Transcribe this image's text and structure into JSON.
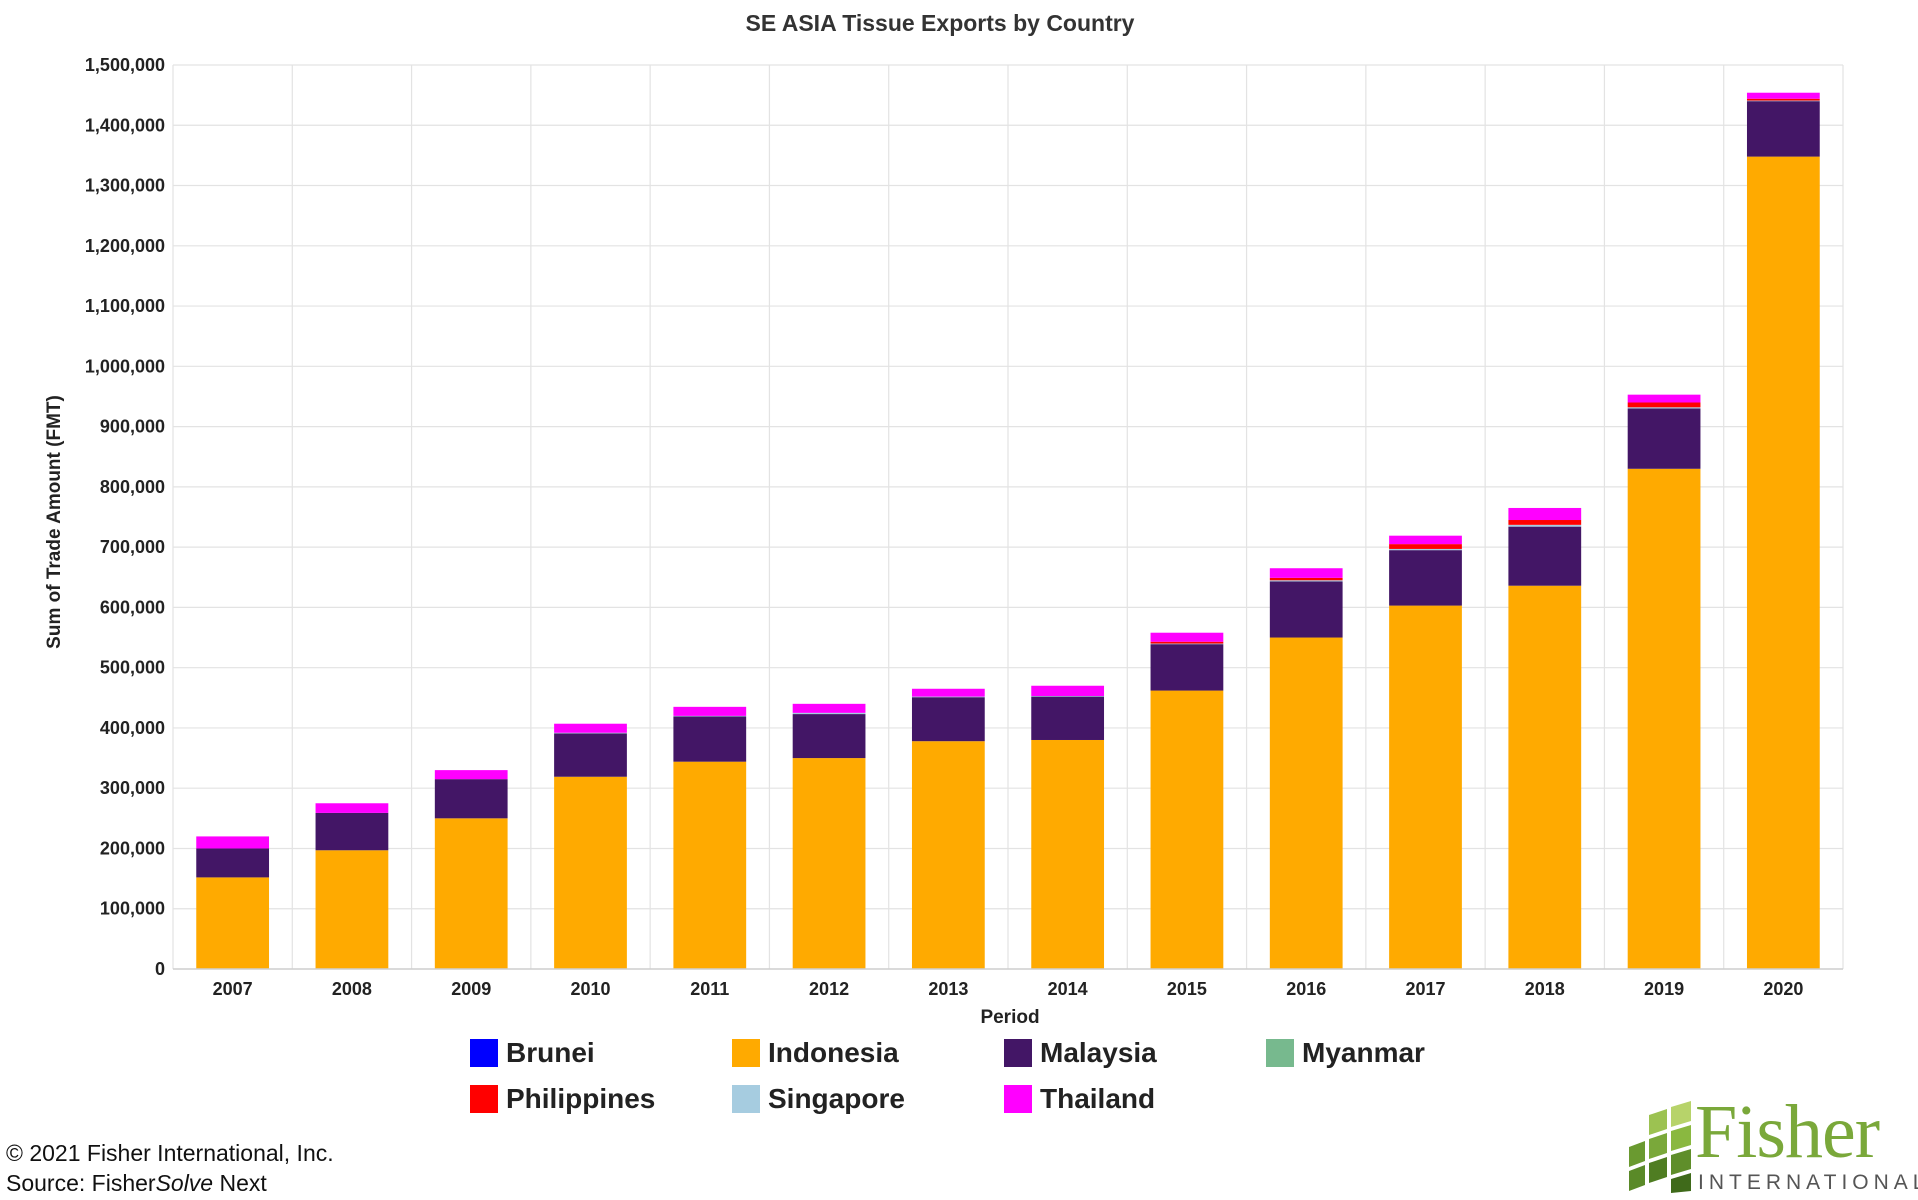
{
  "chart_data": {
    "type": "bar",
    "stacked": true,
    "title": "SE ASIA Tissue Exports by Country",
    "xlabel": "Period",
    "ylabel": "Sum of Trade Amount (FMT)",
    "ylim": [
      0,
      1500000
    ],
    "yticks": [
      0,
      100000,
      200000,
      300000,
      400000,
      500000,
      600000,
      700000,
      800000,
      900000,
      1000000,
      1100000,
      1200000,
      1300000,
      1400000,
      1500000
    ],
    "ytick_labels": [
      "0",
      "100,000",
      "200,000",
      "300,000",
      "400,000",
      "500,000",
      "600,000",
      "700,000",
      "800,000",
      "900,000",
      "1,000,000",
      "1,100,000",
      "1,200,000",
      "1,300,000",
      "1,400,000",
      "1,500,000"
    ],
    "grid": true,
    "legend_position": "bottom",
    "categories": [
      "2007",
      "2008",
      "2009",
      "2010",
      "2011",
      "2012",
      "2013",
      "2014",
      "2015",
      "2016",
      "2017",
      "2018",
      "2019",
      "2020"
    ],
    "series": [
      {
        "name": "Indonesia",
        "color": "#FFAA00",
        "values": [
          152000,
          197000,
          250000,
          319000,
          344000,
          350000,
          378000,
          380000,
          462000,
          550000,
          603000,
          636000,
          830000,
          1348000
        ]
      },
      {
        "name": "Malaysia",
        "color": "#431666",
        "values": [
          48000,
          62000,
          65000,
          72000,
          75000,
          73000,
          73000,
          72000,
          77000,
          93000,
          92000,
          98000,
          100000,
          92000
        ]
      },
      {
        "name": "Brunei",
        "color": "#0000FF",
        "values": [
          0,
          0,
          0,
          0,
          0,
          0,
          0,
          0,
          0,
          0,
          0,
          0,
          0,
          0
        ]
      },
      {
        "name": "Myanmar",
        "color": "#77B98E",
        "values": [
          0,
          0,
          0,
          0,
          0,
          0,
          0,
          0,
          0,
          0,
          0,
          0,
          0,
          0
        ]
      },
      {
        "name": "Singapore",
        "color": "#A6CCE0",
        "values": [
          0,
          0,
          0,
          1000,
          1000,
          2000,
          1000,
          1000,
          1000,
          2000,
          2000,
          3000,
          2000,
          1000
        ]
      },
      {
        "name": "Philippines",
        "color": "#FF0000",
        "values": [
          0,
          0,
          0,
          0,
          0,
          0,
          0,
          0,
          3000,
          4000,
          8000,
          8000,
          8000,
          3000
        ]
      },
      {
        "name": "Thailand",
        "color": "#FF00FF",
        "values": [
          20000,
          16000,
          15000,
          15000,
          15000,
          15000,
          13000,
          17000,
          15000,
          16000,
          14000,
          20000,
          13000,
          10000
        ]
      }
    ]
  },
  "legend": [
    {
      "label": "Brunei",
      "color": "#0000FF"
    },
    {
      "label": "Indonesia",
      "color": "#FFAA00"
    },
    {
      "label": "Malaysia",
      "color": "#431666"
    },
    {
      "label": "Myanmar",
      "color": "#77B98E"
    },
    {
      "label": "Philippines",
      "color": "#FF0000"
    },
    {
      "label": "Singapore",
      "color": "#A6CCE0"
    },
    {
      "label": "Thailand",
      "color": "#FF00FF"
    }
  ],
  "footer": {
    "copyright": "© 2021 Fisher International, Inc.",
    "source_prefix": "Source: Fisher",
    "source_italic": "Solve",
    "source_suffix": " Next"
  },
  "logo": {
    "name": "Fisher",
    "sub": "INTERNATIONAL",
    "color": "#7aa83a"
  }
}
